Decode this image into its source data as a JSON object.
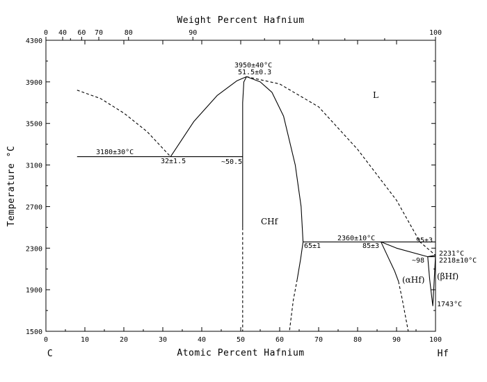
{
  "chart_data": {
    "type": "line",
    "title_top": "Weight Percent Hafnium",
    "xlabel": "Atomic Percent Hafnium",
    "ylabel": "Temperature °C",
    "xlim": [
      0,
      100
    ],
    "ylim": [
      1500,
      4300
    ],
    "x_ticks": [
      "0",
      "10",
      "20",
      "30",
      "40",
      "50",
      "60",
      "70",
      "80",
      "90",
      "100"
    ],
    "y_ticks": [
      "1500",
      "1900",
      "2300",
      "2700",
      "3100",
      "3500",
      "3900",
      "4300"
    ],
    "top_ticks": [
      "0",
      "40",
      "60",
      "70",
      "80",
      "90",
      "100"
    ],
    "element_left": "C",
    "element_right": "Hf",
    "phase_labels": {
      "liquid": "L",
      "chf": "CHf",
      "alpha_hf": "(αHf)",
      "beta_hf": "(βHf)"
    },
    "annotations": {
      "cong_temp": "3950±40°C",
      "cong_comp": "51.5±0.3",
      "eutectic_temp": "3180±30°C",
      "eutectic_comp": "32±1.5",
      "solidus_left": "~50.5",
      "chf_max": "65±1",
      "peritectic_temp": "2360±10°C",
      "peritectic_a": "85±3",
      "peritectic_b": "95±3",
      "hf_melt": "2231°C",
      "hf_2218": "2218±10°C",
      "hf_98": "~98",
      "hf_1743": "1743°C"
    },
    "series": [
      {
        "style": "dashed",
        "points": [
          [
            8,
            3820
          ],
          [
            14,
            3740
          ],
          [
            20,
            3600
          ],
          [
            26,
            3420
          ],
          [
            32,
            3180
          ]
        ]
      },
      {
        "style": "solid",
        "points": [
          [
            32,
            3180
          ],
          [
            38,
            3520
          ],
          [
            44,
            3770
          ],
          [
            49,
            3910
          ],
          [
            51.5,
            3950
          ]
        ]
      },
      {
        "style": "dashed",
        "points": [
          [
            51.5,
            3950
          ],
          [
            60,
            3880
          ],
          [
            70,
            3660
          ],
          [
            80,
            3250
          ],
          [
            90,
            2760
          ],
          [
            96,
            2360
          ],
          [
            100,
            2231
          ]
        ]
      },
      {
        "style": "solid",
        "points": [
          [
            51.5,
            3950
          ],
          [
            55,
            3900
          ],
          [
            58,
            3800
          ],
          [
            61,
            3570
          ],
          [
            64,
            3100
          ],
          [
            65.5,
            2700
          ],
          [
            66,
            2360
          ]
        ]
      },
      {
        "style": "solid",
        "points": [
          [
            51.5,
            3950
          ],
          [
            50.8,
            3900
          ],
          [
            50.5,
            3700
          ],
          [
            50.5,
            3180
          ],
          [
            50.5,
            2500
          ]
        ]
      },
      {
        "style": "dashed",
        "points": [
          [
            50.5,
            2500
          ],
          [
            50.5,
            1500
          ]
        ]
      },
      {
        "style": "solid",
        "points": [
          [
            8,
            3180
          ],
          [
            50.5,
            3180
          ]
        ]
      },
      {
        "style": "solid",
        "points": [
          [
            66,
            2360
          ],
          [
            100,
            2360
          ]
        ]
      },
      {
        "style": "solid",
        "points": [
          [
            66,
            2360
          ],
          [
            65.4,
            2200
          ],
          [
            64.5,
            2000
          ]
        ]
      },
      {
        "style": "dashed",
        "points": [
          [
            64.5,
            2000
          ],
          [
            63.5,
            1800
          ],
          [
            62.5,
            1500
          ]
        ]
      },
      {
        "style": "solid",
        "points": [
          [
            86,
            2360
          ],
          [
            88,
            2200
          ],
          [
            89.5,
            2080
          ],
          [
            90.5,
            1980
          ]
        ]
      },
      {
        "style": "dashed",
        "points": [
          [
            90.5,
            1980
          ],
          [
            91.5,
            1800
          ],
          [
            92.5,
            1600
          ],
          [
            93,
            1500
          ]
        ]
      },
      {
        "style": "solid",
        "points": [
          [
            86,
            2360
          ],
          [
            90,
            2300
          ],
          [
            98,
            2218
          ],
          [
            100,
            2231
          ]
        ]
      },
      {
        "style": "solid",
        "points": [
          [
            98,
            2218
          ],
          [
            98.5,
            2000
          ],
          [
            99.3,
            1743
          ]
        ]
      },
      {
        "style": "solid",
        "points": [
          [
            99.3,
            1743
          ],
          [
            99.6,
            1950
          ],
          [
            100,
            2231
          ]
        ]
      },
      {
        "style": "solid",
        "points": [
          [
            98,
            2218
          ],
          [
            100,
            2218
          ]
        ]
      }
    ]
  }
}
